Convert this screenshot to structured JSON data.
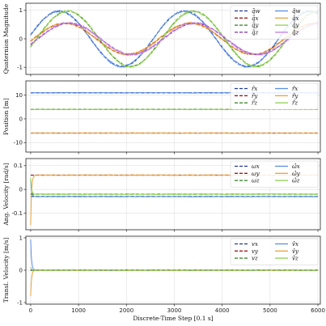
{
  "chart_data": [
    {
      "type": "line",
      "ylabel": "Quaternion Magnitude",
      "ylim": [
        -1.25,
        1.25
      ],
      "xlim": [
        -100,
        6050
      ],
      "yticks": [
        -1,
        0,
        1
      ],
      "xticks": [
        0,
        1000,
        2000,
        3000,
        4000,
        5000,
        6000
      ],
      "show_xticklabels": false,
      "grid": true,
      "legend": {
        "placement": "top-right",
        "columns": 2
      },
      "series": [
        {
          "name": "q̃w",
          "style": "dashed",
          "color": "#1f3a93",
          "kind": "sin",
          "amp": 0.97,
          "period": 2620,
          "phase": -60
        },
        {
          "name": "q̂w",
          "style": "solid",
          "color": "#5b8ee6",
          "kind": "sin",
          "amp": 0.97,
          "period": 2620,
          "phase": -60
        },
        {
          "name": "q̃x",
          "style": "dashed",
          "color": "#9b1c1c",
          "kind": "sin",
          "amp": 0.55,
          "period": 2620,
          "phase": 60
        },
        {
          "name": "q̂x",
          "style": "solid",
          "color": "#e8a33a",
          "kind": "sin",
          "amp": 0.55,
          "period": 2620,
          "phase": 60
        },
        {
          "name": "q̃y",
          "style": "dashed",
          "color": "#2e7d1e",
          "kind": "sin",
          "amp": 0.97,
          "period": 2620,
          "phase": 120
        },
        {
          "name": "q̂y",
          "style": "solid",
          "color": "#8fd14f",
          "kind": "sin",
          "amp": 0.97,
          "period": 2620,
          "phase": 120
        },
        {
          "name": "q̃z",
          "style": "dashed",
          "color": "#7d2c9e",
          "kind": "sin",
          "amp": 0.55,
          "period": 2620,
          "phase": 150
        },
        {
          "name": "q̂z",
          "style": "solid",
          "color": "#c27be8",
          "kind": "sin",
          "amp": 0.55,
          "period": 2620,
          "phase": 150
        }
      ]
    },
    {
      "type": "line",
      "ylabel": "Position [m]",
      "ylim": [
        -14,
        16
      ],
      "xlim": [
        -100,
        6050
      ],
      "yticks": [
        -10,
        0,
        10
      ],
      "xticks": [
        0,
        1000,
        2000,
        3000,
        4000,
        5000,
        6000
      ],
      "show_xticklabels": false,
      "grid": true,
      "legend": {
        "placement": "top-right",
        "columns": 2
      },
      "series": [
        {
          "name": "r̃x",
          "style": "dashed",
          "color": "#1f3a93",
          "kind": "const",
          "value": 11
        },
        {
          "name": "r̂x",
          "style": "solid",
          "color": "#5b8ee6",
          "kind": "const",
          "value": 11
        },
        {
          "name": "r̃y",
          "style": "dashed",
          "color": "#9b1c1c",
          "kind": "const",
          "value": -6
        },
        {
          "name": "r̂y",
          "style": "solid",
          "color": "#e8a33a",
          "kind": "const",
          "value": -6
        },
        {
          "name": "r̃z",
          "style": "dashed",
          "color": "#2e7d1e",
          "kind": "const",
          "value": 4
        },
        {
          "name": "r̂z",
          "style": "solid",
          "color": "#8fd14f",
          "kind": "const",
          "value": 4
        }
      ]
    },
    {
      "type": "line",
      "ylabel": "Ang. Velocity [rad/s]",
      "ylim": [
        -0.17,
        0.13
      ],
      "xlim": [
        -100,
        6050
      ],
      "yticks": [
        -0.1,
        0.0,
        0.1
      ],
      "xticks": [
        0,
        1000,
        2000,
        3000,
        4000,
        5000,
        6000
      ],
      "show_xticklabels": false,
      "grid": true,
      "legend": {
        "placement": "top-right",
        "columns": 2
      },
      "series": [
        {
          "name": "ωx",
          "style": "dashed",
          "color": "#1f3a93",
          "kind": "const",
          "value": -0.03
        },
        {
          "name": "ω̂x",
          "style": "solid",
          "color": "#5b8ee6",
          "kind": "settle",
          "value": -0.03,
          "start": 0.04
        },
        {
          "name": "ωy",
          "style": "dashed",
          "color": "#9b1c1c",
          "kind": "const",
          "value": 0.06
        },
        {
          "name": "ω̂y",
          "style": "solid",
          "color": "#e8a33a",
          "kind": "settle",
          "value": 0.06,
          "start": -0.15
        },
        {
          "name": "ωz",
          "style": "dashed",
          "color": "#2e7d1e",
          "kind": "const",
          "value": -0.02
        },
        {
          "name": "ω̂z",
          "style": "solid",
          "color": "#8fd14f",
          "kind": "settle",
          "value": -0.02,
          "start": 0.05
        }
      ]
    },
    {
      "type": "line",
      "ylabel": "Transl. Velocity [m/s]",
      "xlabel": "Discrete-Time Step [0.1 s]",
      "ylim": [
        -1.05,
        1.05
      ],
      "xlim": [
        -100,
        6050
      ],
      "yticks": [
        -1,
        0,
        1
      ],
      "xticks": [
        0,
        1000,
        2000,
        3000,
        4000,
        5000,
        6000
      ],
      "show_xticklabels": true,
      "grid": true,
      "legend": {
        "placement": "top-right",
        "columns": 2
      },
      "series": [
        {
          "name": "vx",
          "style": "dashed",
          "color": "#1f3a93",
          "kind": "const",
          "value": 0
        },
        {
          "name": "v̂x",
          "style": "solid",
          "color": "#5b8ee6",
          "kind": "settle",
          "value": 0,
          "start": 0.95
        },
        {
          "name": "vy",
          "style": "dashed",
          "color": "#9b1c1c",
          "kind": "const",
          "value": 0
        },
        {
          "name": "v̂y",
          "style": "solid",
          "color": "#e8a33a",
          "kind": "settle",
          "value": 0,
          "start": -0.8
        },
        {
          "name": "vz",
          "style": "dashed",
          "color": "#2e7d1e",
          "kind": "const",
          "value": 0
        },
        {
          "name": "v̂z",
          "style": "solid",
          "color": "#8fd14f",
          "kind": "settle",
          "value": 0,
          "start": 0.1
        }
      ]
    }
  ]
}
